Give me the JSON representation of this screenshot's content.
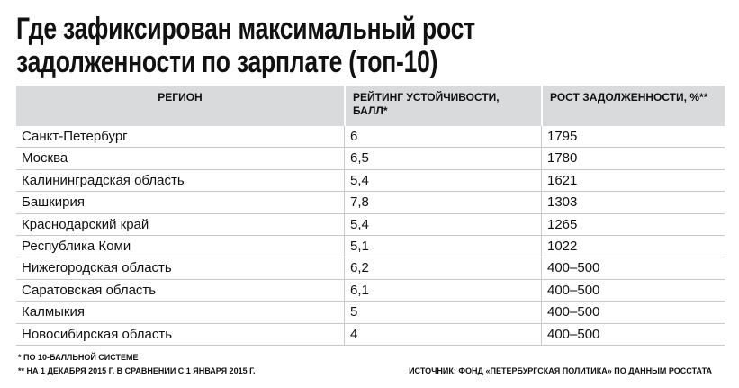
{
  "title": [
    "Где зафиксирован максимальный рост",
    "задолженности по зарплате (топ-10)"
  ],
  "table": {
    "header": [
      "РЕГИОН",
      "РЕЙТИНГ УСТОЙЧИВОСТИ, БАЛЛ*",
      "РОСТ ЗАДОЛЖЕННОСТИ, %**"
    ],
    "rows": [
      [
        "Санкт-Петербург",
        "6",
        "1795"
      ],
      [
        "Москва",
        "6,5",
        "1780"
      ],
      [
        "Калининградская область",
        "5,4",
        "1621"
      ],
      [
        "Башкирия",
        "7,8",
        "1303"
      ],
      [
        "Краснодарский край",
        "5,4",
        "1265"
      ],
      [
        "Республика Коми",
        "5,1",
        "1022"
      ],
      [
        "Нижегородская область",
        "6,2",
        "400–500"
      ],
      [
        "Саратовская область",
        "6,1",
        "400–500"
      ],
      [
        "Калмыкия",
        "5",
        "400–500"
      ],
      [
        "Новосибирская область",
        "4",
        "400–500"
      ]
    ]
  },
  "footnotes": [
    "* ПО 10-БАЛЛЬНОЙ СИСТЕМЕ",
    "** НА 1 ДЕКАБРЯ 2015 Г. В СРАВНЕНИИ С 1 ЯНВАРЯ 2015 Г."
  ],
  "source": "ИСТОЧНИК: ФОНД «ПЕТЕРБУРГСКАЯ ПОЛИТИКА» ПО ДАННЫМ РОССТАТА"
}
